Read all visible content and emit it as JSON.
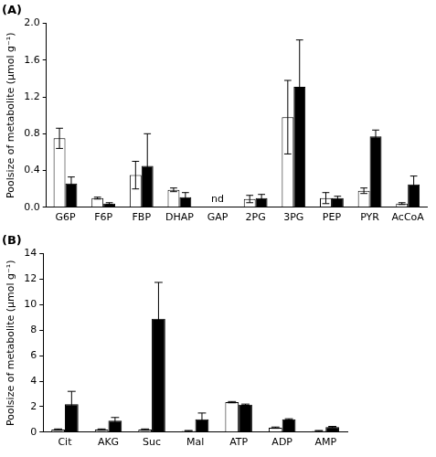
{
  "chart_data": [
    {
      "type": "bar",
      "title": "(A)",
      "y_label": "Poolsize of metabolite (µmol g⁻¹)",
      "categories": [
        "G6P",
        "F6P",
        "FBP",
        "DHAP",
        "GAP",
        "2PG",
        "3PG",
        "PEP",
        "PYR",
        "AcCoA"
      ],
      "series": [
        {
          "color": "#ffffff",
          "values": [
            0.75,
            0.1,
            0.35,
            0.19,
            null,
            0.09,
            0.98,
            0.1,
            0.18,
            0.04
          ],
          "errors": [
            0.11,
            0.01,
            0.15,
            0.02,
            null,
            0.04,
            0.4,
            0.06,
            0.03,
            0.01
          ]
        },
        {
          "color": "#000000",
          "values": [
            0.26,
            0.04,
            0.45,
            0.11,
            null,
            0.1,
            1.31,
            0.1,
            0.77,
            0.25
          ],
          "errors": [
            0.07,
            0.01,
            0.35,
            0.05,
            null,
            0.04,
            0.51,
            0.02,
            0.07,
            0.09
          ]
        }
      ],
      "annotations": [
        {
          "text": "nd",
          "category": "GAP"
        }
      ],
      "ylim": [
        0,
        2.0
      ],
      "yticks": [
        {
          "value": 0,
          "label": "0.0"
        },
        0.4,
        0.8,
        1.2,
        1.6,
        {
          "value": 2,
          "label": "2.0"
        }
      ],
      "grid": false
    },
    {
      "type": "bar",
      "title": "(B)",
      "y_label": "Poolsize of metabolite (µmol g⁻¹)",
      "categories": [
        "Cit",
        "AKG",
        "Suc",
        "Mal",
        "ATP",
        "ADP",
        "AMP"
      ],
      "series": [
        {
          "color": "#ffffff",
          "values": [
            0.2,
            0.2,
            0.2,
            0.1,
            2.35,
            0.35,
            0.1
          ],
          "errors": [
            0.05,
            0.05,
            0.05,
            0.03,
            0.05,
            0.05,
            0.03
          ]
        },
        {
          "color": "#000000",
          "values": [
            2.2,
            0.9,
            8.9,
            1.0,
            2.15,
            1.0,
            0.4
          ],
          "errors": [
            1.0,
            0.25,
            2.85,
            0.5,
            0.05,
            0.05,
            0.05
          ]
        }
      ],
      "ylim": [
        0,
        14
      ],
      "yticks": [
        0,
        2,
        4,
        6,
        8,
        10,
        12,
        14
      ],
      "grid": false
    }
  ]
}
